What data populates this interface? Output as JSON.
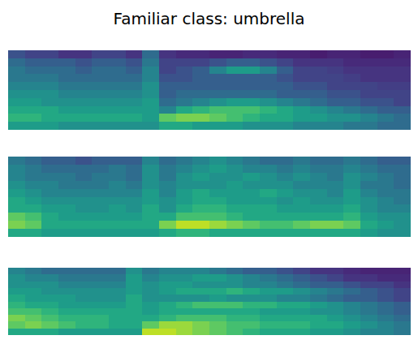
{
  "title": "Familiar class: umbrella",
  "chart_data": [
    {
      "type": "heatmap",
      "color": "viridis",
      "zlim": [
        0,
        1
      ],
      "tick_labels": false,
      "cells": [
        [
          0.25,
          0.2,
          0.2,
          0.15,
          0.15,
          0.2,
          0.2,
          0.15,
          0.35,
          0.15,
          0.12,
          0.12,
          0.1,
          0.1,
          0.12,
          0.12,
          0.1,
          0.1,
          0.08,
          0.1,
          0.1,
          0.08,
          0.08,
          0.1
        ],
        [
          0.35,
          0.3,
          0.3,
          0.3,
          0.25,
          0.3,
          0.3,
          0.25,
          0.4,
          0.2,
          0.2,
          0.2,
          0.25,
          0.3,
          0.3,
          0.25,
          0.2,
          0.15,
          0.15,
          0.15,
          0.12,
          0.12,
          0.12,
          0.12
        ],
        [
          0.4,
          0.35,
          0.35,
          0.35,
          0.3,
          0.35,
          0.35,
          0.3,
          0.45,
          0.2,
          0.25,
          0.3,
          0.45,
          0.55,
          0.55,
          0.45,
          0.3,
          0.2,
          0.2,
          0.18,
          0.15,
          0.15,
          0.15,
          0.15
        ],
        [
          0.4,
          0.4,
          0.4,
          0.35,
          0.35,
          0.35,
          0.35,
          0.35,
          0.45,
          0.25,
          0.25,
          0.3,
          0.3,
          0.3,
          0.3,
          0.3,
          0.25,
          0.2,
          0.2,
          0.2,
          0.18,
          0.15,
          0.15,
          0.15
        ],
        [
          0.45,
          0.45,
          0.45,
          0.4,
          0.4,
          0.4,
          0.4,
          0.4,
          0.5,
          0.3,
          0.3,
          0.3,
          0.3,
          0.3,
          0.3,
          0.3,
          0.3,
          0.25,
          0.25,
          0.2,
          0.2,
          0.2,
          0.18,
          0.18
        ],
        [
          0.5,
          0.5,
          0.5,
          0.45,
          0.45,
          0.45,
          0.45,
          0.45,
          0.5,
          0.3,
          0.35,
          0.35,
          0.35,
          0.35,
          0.35,
          0.35,
          0.3,
          0.3,
          0.3,
          0.25,
          0.25,
          0.2,
          0.2,
          0.2
        ],
        [
          0.55,
          0.55,
          0.5,
          0.5,
          0.5,
          0.5,
          0.5,
          0.5,
          0.55,
          0.35,
          0.4,
          0.45,
          0.5,
          0.55,
          0.55,
          0.5,
          0.45,
          0.4,
          0.35,
          0.3,
          0.3,
          0.25,
          0.25,
          0.2
        ],
        [
          0.6,
          0.6,
          0.6,
          0.55,
          0.55,
          0.55,
          0.55,
          0.55,
          0.55,
          0.45,
          0.6,
          0.65,
          0.7,
          0.7,
          0.7,
          0.65,
          0.6,
          0.55,
          0.5,
          0.45,
          0.4,
          0.35,
          0.3,
          0.3
        ],
        [
          0.65,
          0.65,
          0.6,
          0.6,
          0.6,
          0.6,
          0.6,
          0.6,
          0.55,
          0.75,
          0.8,
          0.8,
          0.75,
          0.7,
          0.65,
          0.6,
          0.6,
          0.55,
          0.55,
          0.5,
          0.5,
          0.45,
          0.4,
          0.35
        ],
        [
          0.55,
          0.55,
          0.55,
          0.5,
          0.5,
          0.5,
          0.5,
          0.5,
          0.5,
          0.6,
          0.6,
          0.55,
          0.55,
          0.55,
          0.5,
          0.5,
          0.5,
          0.45,
          0.45,
          0.45,
          0.4,
          0.4,
          0.35,
          0.35
        ]
      ]
    },
    {
      "type": "heatmap",
      "color": "viridis",
      "zlim": [
        0,
        1
      ],
      "tick_labels": false,
      "cells": [
        [
          0.4,
          0.35,
          0.3,
          0.3,
          0.25,
          0.3,
          0.3,
          0.3,
          0.45,
          0.35,
          0.4,
          0.45,
          0.5,
          0.45,
          0.4,
          0.35,
          0.35,
          0.4,
          0.35,
          0.35,
          0.4,
          0.35,
          0.3,
          0.3
        ],
        [
          0.45,
          0.4,
          0.35,
          0.35,
          0.35,
          0.35,
          0.4,
          0.35,
          0.5,
          0.4,
          0.45,
          0.5,
          0.55,
          0.5,
          0.45,
          0.45,
          0.4,
          0.45,
          0.4,
          0.4,
          0.45,
          0.4,
          0.35,
          0.35
        ],
        [
          0.45,
          0.4,
          0.4,
          0.4,
          0.35,
          0.4,
          0.4,
          0.35,
          0.5,
          0.4,
          0.5,
          0.55,
          0.5,
          0.5,
          0.55,
          0.5,
          0.45,
          0.5,
          0.45,
          0.4,
          0.5,
          0.45,
          0.4,
          0.35
        ],
        [
          0.5,
          0.45,
          0.45,
          0.4,
          0.4,
          0.4,
          0.45,
          0.4,
          0.5,
          0.45,
          0.5,
          0.5,
          0.5,
          0.55,
          0.5,
          0.5,
          0.5,
          0.45,
          0.45,
          0.45,
          0.5,
          0.4,
          0.4,
          0.35
        ],
        [
          0.55,
          0.5,
          0.45,
          0.45,
          0.45,
          0.45,
          0.45,
          0.45,
          0.55,
          0.45,
          0.55,
          0.6,
          0.55,
          0.55,
          0.55,
          0.6,
          0.55,
          0.5,
          0.5,
          0.45,
          0.55,
          0.45,
          0.4,
          0.4
        ],
        [
          0.6,
          0.55,
          0.5,
          0.5,
          0.5,
          0.5,
          0.5,
          0.5,
          0.55,
          0.5,
          0.55,
          0.6,
          0.6,
          0.55,
          0.55,
          0.55,
          0.5,
          0.55,
          0.5,
          0.5,
          0.55,
          0.5,
          0.45,
          0.4
        ],
        [
          0.6,
          0.6,
          0.55,
          0.55,
          0.5,
          0.5,
          0.55,
          0.5,
          0.6,
          0.5,
          0.6,
          0.65,
          0.65,
          0.6,
          0.6,
          0.6,
          0.55,
          0.55,
          0.55,
          0.55,
          0.6,
          0.5,
          0.45,
          0.45
        ],
        [
          0.75,
          0.7,
          0.6,
          0.55,
          0.55,
          0.55,
          0.55,
          0.55,
          0.6,
          0.6,
          0.7,
          0.7,
          0.7,
          0.65,
          0.6,
          0.6,
          0.6,
          0.6,
          0.6,
          0.6,
          0.65,
          0.55,
          0.5,
          0.5
        ],
        [
          0.8,
          0.75,
          0.6,
          0.6,
          0.6,
          0.6,
          0.6,
          0.6,
          0.6,
          0.8,
          0.9,
          0.9,
          0.85,
          0.8,
          0.75,
          0.7,
          0.7,
          0.75,
          0.8,
          0.8,
          0.75,
          0.6,
          0.55,
          0.5
        ],
        [
          0.6,
          0.6,
          0.55,
          0.55,
          0.55,
          0.55,
          0.55,
          0.55,
          0.55,
          0.6,
          0.65,
          0.65,
          0.6,
          0.6,
          0.6,
          0.6,
          0.6,
          0.6,
          0.6,
          0.6,
          0.6,
          0.55,
          0.5,
          0.5
        ]
      ]
    },
    {
      "type": "heatmap",
      "color": "viridis",
      "zlim": [
        0,
        1
      ],
      "tick_labels": false,
      "cells": [
        [
          0.45,
          0.4,
          0.35,
          0.35,
          0.35,
          0.35,
          0.35,
          0.5,
          0.4,
          0.45,
          0.45,
          0.45,
          0.4,
          0.35,
          0.3,
          0.3,
          0.25,
          0.2,
          0.15,
          0.15,
          0.12,
          0.1,
          0.1,
          0.1
        ],
        [
          0.5,
          0.45,
          0.45,
          0.4,
          0.4,
          0.4,
          0.4,
          0.55,
          0.45,
          0.5,
          0.5,
          0.55,
          0.55,
          0.5,
          0.45,
          0.4,
          0.35,
          0.3,
          0.25,
          0.2,
          0.15,
          0.15,
          0.12,
          0.12
        ],
        [
          0.5,
          0.5,
          0.5,
          0.45,
          0.45,
          0.45,
          0.45,
          0.55,
          0.5,
          0.55,
          0.55,
          0.5,
          0.5,
          0.5,
          0.45,
          0.45,
          0.4,
          0.35,
          0.3,
          0.3,
          0.25,
          0.2,
          0.2,
          0.15
        ],
        [
          0.55,
          0.55,
          0.5,
          0.5,
          0.5,
          0.5,
          0.5,
          0.55,
          0.5,
          0.55,
          0.6,
          0.6,
          0.6,
          0.65,
          0.6,
          0.55,
          0.55,
          0.5,
          0.45,
          0.4,
          0.35,
          0.3,
          0.25,
          0.2
        ],
        [
          0.6,
          0.55,
          0.55,
          0.55,
          0.5,
          0.5,
          0.5,
          0.6,
          0.5,
          0.5,
          0.5,
          0.5,
          0.55,
          0.5,
          0.5,
          0.5,
          0.45,
          0.45,
          0.4,
          0.35,
          0.3,
          0.3,
          0.25,
          0.2
        ],
        [
          0.65,
          0.6,
          0.6,
          0.55,
          0.55,
          0.55,
          0.55,
          0.6,
          0.55,
          0.6,
          0.65,
          0.7,
          0.7,
          0.7,
          0.65,
          0.65,
          0.6,
          0.6,
          0.55,
          0.5,
          0.45,
          0.4,
          0.35,
          0.3
        ],
        [
          0.7,
          0.7,
          0.65,
          0.6,
          0.6,
          0.6,
          0.6,
          0.6,
          0.55,
          0.6,
          0.6,
          0.6,
          0.6,
          0.6,
          0.6,
          0.55,
          0.55,
          0.55,
          0.5,
          0.5,
          0.45,
          0.4,
          0.35,
          0.3
        ],
        [
          0.8,
          0.75,
          0.7,
          0.65,
          0.65,
          0.65,
          0.6,
          0.6,
          0.6,
          0.65,
          0.7,
          0.7,
          0.7,
          0.65,
          0.65,
          0.6,
          0.6,
          0.6,
          0.6,
          0.55,
          0.5,
          0.45,
          0.4,
          0.35
        ],
        [
          0.75,
          0.8,
          0.75,
          0.7,
          0.65,
          0.65,
          0.6,
          0.6,
          0.75,
          0.85,
          0.85,
          0.8,
          0.75,
          0.7,
          0.7,
          0.65,
          0.65,
          0.65,
          0.6,
          0.6,
          0.55,
          0.5,
          0.45,
          0.4
        ],
        [
          0.6,
          0.6,
          0.6,
          0.55,
          0.55,
          0.55,
          0.55,
          0.55,
          0.9,
          0.9,
          0.85,
          0.8,
          0.75,
          0.7,
          0.65,
          0.6,
          0.6,
          0.6,
          0.55,
          0.55,
          0.5,
          0.45,
          0.45,
          0.4
        ]
      ]
    }
  ]
}
